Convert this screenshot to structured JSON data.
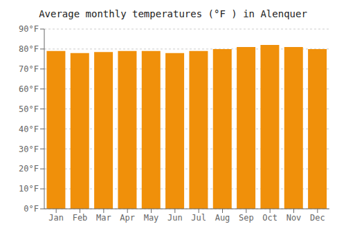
{
  "chart_data": {
    "type": "bar",
    "title": "Average monthly temperatures (°F ) in Alenquer",
    "categories": [
      "Jan",
      "Feb",
      "Mar",
      "Apr",
      "May",
      "Jun",
      "Jul",
      "Aug",
      "Sep",
      "Oct",
      "Nov",
      "Dec"
    ],
    "values": [
      79,
      78,
      78.5,
      79,
      79,
      78,
      79,
      80,
      81,
      82,
      81,
      80
    ],
    "color": "#F0900A",
    "ylim": [
      0,
      90
    ],
    "yticks": [
      {
        "value": 0,
        "label": "0°F"
      },
      {
        "value": 10,
        "label": "10°F"
      },
      {
        "value": 20,
        "label": "20°F"
      },
      {
        "value": 30,
        "label": "30°F"
      },
      {
        "value": 40,
        "label": "40°F"
      },
      {
        "value": 50,
        "label": "50°F"
      },
      {
        "value": 60,
        "label": "60°F"
      },
      {
        "value": 70,
        "label": "70°F"
      },
      {
        "value": 80,
        "label": "80°F"
      },
      {
        "value": 90,
        "label": "90°F"
      }
    ],
    "grid": true
  }
}
